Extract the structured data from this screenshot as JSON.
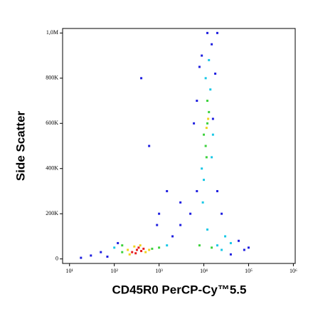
{
  "chart_data": {
    "type": "scatter",
    "x_label": "CD45R0 PerCP-Cy™5.5",
    "y_label": "Side Scatter",
    "xscale": "log",
    "xlim": [
      7,
      1100000
    ],
    "ylim": [
      -20000,
      1020000
    ],
    "xticks": [
      {
        "value": 10,
        "label": "10¹"
      },
      {
        "value": 100,
        "label": "10²"
      },
      {
        "value": 1000,
        "label": "10³"
      },
      {
        "value": 10000,
        "label": "10⁴"
      },
      {
        "value": 100000,
        "label": "10⁵"
      },
      {
        "value": 1000000,
        "label": "10⁶"
      }
    ],
    "yticks": [
      0,
      {
        "value": 200000,
        "label": "200K"
      },
      {
        "value": 400000,
        "label": "400K"
      },
      {
        "value": 600000,
        "label": "600K"
      },
      {
        "value": 800000,
        "label": "800K"
      },
      {
        "value": 1000000,
        "label": "1,0M"
      }
    ],
    "series": [
      {
        "color": "#1f1fe0",
        "x": [
          9000,
          15000,
          7000,
          20000,
          5000,
          3000,
          2000,
          60000,
          80000,
          50,
          70,
          18,
          3000,
          600,
          1000,
          8000,
          20000,
          12000,
          400,
          25000,
          6000,
          16000,
          7000,
          18000,
          900,
          1500,
          30,
          120,
          40000,
          100000
        ],
        "values": [
          900000,
          950000,
          300000,
          300000,
          200000,
          150000,
          100000,
          80000,
          40000,
          30000,
          10000,
          5000,
          250000,
          500000,
          200000,
          850000,
          1000000,
          1000000,
          800000,
          200000,
          600000,
          620000,
          700000,
          820000,
          150000,
          300000,
          15000,
          70000,
          20000,
          50000
        ]
      },
      {
        "color": "#19c8e6",
        "x": [
          9000,
          14000,
          11000,
          15000,
          10000,
          20000,
          40000,
          12000,
          30000,
          100,
          1500,
          13000,
          9500,
          16000,
          25000
        ],
        "values": [
          400000,
          750000,
          800000,
          450000,
          350000,
          60000,
          70000,
          130000,
          100000,
          50000,
          60000,
          880000,
          250000,
          550000,
          40000
        ]
      },
      {
        "color": "#3cd23c",
        "x": [
          150,
          700,
          1000,
          150,
          11000,
          12000,
          13000,
          10000,
          12000,
          11500,
          8000,
          15000
        ],
        "values": [
          30000,
          45000,
          50000,
          60000,
          500000,
          600000,
          650000,
          550000,
          700000,
          450000,
          60000,
          50000
        ]
      },
      {
        "color": "#f0d21e",
        "x": [
          200,
          500,
          280,
          600,
          220,
          380,
          11500,
          12500
        ],
        "values": [
          40000,
          30000,
          55000,
          40000,
          20000,
          60000,
          580000,
          620000
        ]
      },
      {
        "color": "#e61e1e",
        "x": [
          250,
          320,
          400,
          300,
          450,
          350
        ],
        "values": [
          30000,
          40000,
          35000,
          25000,
          45000,
          50000
        ]
      }
    ]
  }
}
